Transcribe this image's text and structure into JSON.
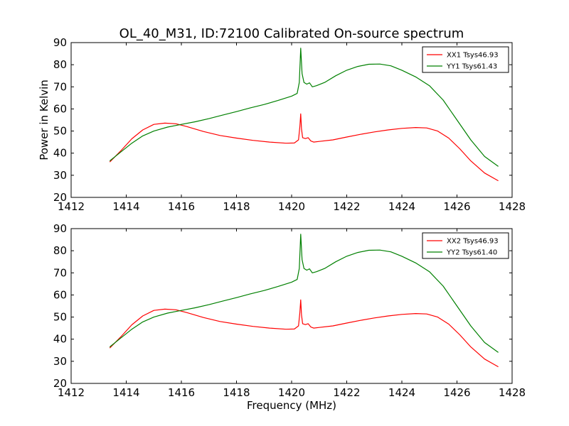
{
  "figure": {
    "title": "OL_40_M31, ID:72100 Calibrated On-source spectrum",
    "xlabel": "Frequency (MHz)",
    "ylabel": "Power in Kelvin"
  },
  "colors": {
    "red": "#ff0000",
    "green": "#008000"
  },
  "chart_data": [
    {
      "type": "line",
      "xlim": [
        1412,
        1428
      ],
      "ylim": [
        20,
        90
      ],
      "xticks": [
        "1412",
        "1414",
        "1416",
        "1418",
        "1420",
        "1422",
        "1424",
        "1426",
        "1428"
      ],
      "yticks": [
        "20",
        "30",
        "40",
        "50",
        "60",
        "70",
        "80",
        "90"
      ],
      "grid": false,
      "legend_position": "top-right",
      "series": [
        {
          "name": "XX1 Tsys46.93",
          "color": "#ff0000",
          "x": [
            1413.4,
            1413.8,
            1414.2,
            1414.6,
            1415.0,
            1415.4,
            1415.8,
            1416.2,
            1416.8,
            1417.4,
            1418.0,
            1418.6,
            1419.2,
            1419.8,
            1420.1,
            1420.25,
            1420.3,
            1420.33,
            1420.36,
            1420.4,
            1420.5,
            1420.6,
            1420.7,
            1420.8,
            1421.0,
            1421.5,
            1422.0,
            1422.5,
            1423.0,
            1423.5,
            1424.0,
            1424.5,
            1424.9,
            1425.3,
            1425.7,
            1426.1,
            1426.5,
            1427.0,
            1427.5
          ],
          "y": [
            36.0,
            41.0,
            46.5,
            50.5,
            53.0,
            53.6,
            53.3,
            52.0,
            49.8,
            48.0,
            46.8,
            45.8,
            45.0,
            44.5,
            44.6,
            46.0,
            52.0,
            57.8,
            51.0,
            47.0,
            46.6,
            47.0,
            45.5,
            45.0,
            45.3,
            46.0,
            47.3,
            48.5,
            49.6,
            50.5,
            51.2,
            51.6,
            51.4,
            50.0,
            46.8,
            42.0,
            36.5,
            31.0,
            27.5
          ]
        },
        {
          "name": "YY1 Tsys61.43",
          "color": "#008000",
          "x": [
            1413.4,
            1413.8,
            1414.2,
            1414.6,
            1415.0,
            1415.5,
            1416.0,
            1416.5,
            1417.0,
            1417.5,
            1418.0,
            1418.5,
            1419.0,
            1419.5,
            1420.0,
            1420.2,
            1420.28,
            1420.33,
            1420.38,
            1420.45,
            1420.55,
            1420.65,
            1420.75,
            1420.9,
            1421.2,
            1421.6,
            1422.0,
            1422.4,
            1422.8,
            1423.2,
            1423.6,
            1424.0,
            1424.5,
            1425.0,
            1425.5,
            1426.0,
            1426.5,
            1427.0,
            1427.5
          ],
          "y": [
            36.5,
            40.5,
            44.5,
            47.8,
            50.0,
            51.8,
            53.0,
            54.2,
            55.6,
            57.2,
            58.8,
            60.5,
            62.0,
            63.8,
            65.8,
            67.0,
            72.0,
            87.5,
            76.0,
            72.0,
            71.2,
            71.8,
            70.0,
            70.5,
            72.0,
            75.0,
            77.5,
            79.2,
            80.2,
            80.3,
            79.5,
            77.5,
            74.5,
            70.5,
            64.0,
            55.0,
            46.0,
            38.5,
            34.0
          ]
        }
      ]
    },
    {
      "type": "line",
      "xlim": [
        1412,
        1428
      ],
      "ylim": [
        20,
        90
      ],
      "xticks": [
        "1412",
        "1414",
        "1416",
        "1418",
        "1420",
        "1422",
        "1424",
        "1426",
        "1428"
      ],
      "yticks": [
        "20",
        "30",
        "40",
        "50",
        "60",
        "70",
        "80",
        "90"
      ],
      "grid": false,
      "legend_position": "top-right",
      "series": [
        {
          "name": "XX2 Tsys46.93",
          "color": "#ff0000",
          "x": [
            1413.4,
            1413.8,
            1414.2,
            1414.6,
            1415.0,
            1415.4,
            1415.8,
            1416.2,
            1416.8,
            1417.4,
            1418.0,
            1418.6,
            1419.2,
            1419.8,
            1420.1,
            1420.25,
            1420.3,
            1420.33,
            1420.36,
            1420.4,
            1420.5,
            1420.6,
            1420.7,
            1420.8,
            1421.0,
            1421.5,
            1422.0,
            1422.5,
            1423.0,
            1423.5,
            1424.0,
            1424.5,
            1424.9,
            1425.3,
            1425.7,
            1426.1,
            1426.5,
            1427.0,
            1427.5
          ],
          "y": [
            36.0,
            41.0,
            46.5,
            50.5,
            53.0,
            53.6,
            53.3,
            52.0,
            49.8,
            48.0,
            46.8,
            45.8,
            45.0,
            44.5,
            44.6,
            46.0,
            52.0,
            57.8,
            51.0,
            47.0,
            46.6,
            47.0,
            45.5,
            45.0,
            45.3,
            46.0,
            47.3,
            48.5,
            49.6,
            50.5,
            51.2,
            51.6,
            51.4,
            50.0,
            46.8,
            42.0,
            36.5,
            31.0,
            27.5
          ]
        },
        {
          "name": "YY2 Tsys61.40",
          "color": "#008000",
          "x": [
            1413.4,
            1413.8,
            1414.2,
            1414.6,
            1415.0,
            1415.5,
            1416.0,
            1416.5,
            1417.0,
            1417.5,
            1418.0,
            1418.5,
            1419.0,
            1419.5,
            1420.0,
            1420.2,
            1420.28,
            1420.33,
            1420.38,
            1420.45,
            1420.55,
            1420.65,
            1420.75,
            1420.9,
            1421.2,
            1421.6,
            1422.0,
            1422.4,
            1422.8,
            1423.2,
            1423.6,
            1424.0,
            1424.5,
            1425.0,
            1425.5,
            1426.0,
            1426.5,
            1427.0,
            1427.5
          ],
          "y": [
            36.5,
            40.5,
            44.5,
            47.8,
            50.0,
            51.8,
            53.0,
            54.2,
            55.6,
            57.2,
            58.8,
            60.5,
            62.0,
            63.8,
            65.8,
            67.0,
            72.0,
            87.5,
            76.0,
            72.0,
            71.2,
            71.8,
            70.0,
            70.5,
            72.0,
            75.0,
            77.5,
            79.2,
            80.2,
            80.3,
            79.5,
            77.5,
            74.5,
            70.5,
            64.0,
            55.0,
            46.0,
            38.5,
            34.0
          ]
        }
      ]
    }
  ]
}
